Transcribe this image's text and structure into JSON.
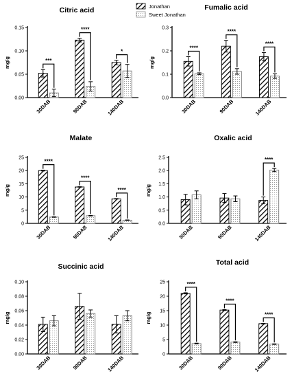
{
  "legend": {
    "items": [
      {
        "name": "Jonathan",
        "pattern": "hatch"
      },
      {
        "name": "Sweet Jonathan",
        "pattern": "dots"
      }
    ]
  },
  "chart_data": [
    {
      "type": "bar",
      "title": "Citric acid",
      "ylabel": "mg/g",
      "categories": [
        "30DAB",
        "90DAB",
        "140DAB"
      ],
      "ylim": [
        0,
        0.15
      ],
      "yticks": [
        "0.00",
        "0.05",
        "0.10",
        "0.15"
      ],
      "series": [
        {
          "name": "Jonathan",
          "values": [
            0.052,
            0.123,
            0.075
          ],
          "errors": [
            0.008,
            0.004,
            0.005
          ]
        },
        {
          "name": "Sweet Jonathan",
          "values": [
            0.01,
            0.024,
            0.057
          ],
          "errors": [
            0.008,
            0.01,
            0.014
          ]
        }
      ],
      "significance": [
        "***",
        "****",
        "*"
      ]
    },
    {
      "type": "bar",
      "title": "Fumalic acid",
      "ylabel": "mg/g",
      "categories": [
        "30DAB",
        "90DAB",
        "140DAB"
      ],
      "ylim": [
        0,
        0.3
      ],
      "yticks": [
        "0.0",
        "0.1",
        "0.2",
        "0.3"
      ],
      "series": [
        {
          "name": "Jonathan",
          "values": [
            0.155,
            0.22,
            0.175
          ],
          "errors": [
            0.02,
            0.025,
            0.018
          ]
        },
        {
          "name": "Sweet Jonathan",
          "values": [
            0.102,
            0.112,
            0.092
          ],
          "errors": [
            0.004,
            0.012,
            0.01
          ]
        }
      ],
      "significance": [
        "****",
        "****",
        "****"
      ]
    },
    {
      "type": "bar",
      "title": "Malate",
      "ylabel": "mg/g",
      "categories": [
        "30DAB",
        "90DAB",
        "140DAB"
      ],
      "ylim": [
        0,
        25
      ],
      "yticks": [
        "0",
        "5",
        "10",
        "15",
        "20",
        "25"
      ],
      "series": [
        {
          "name": "Jonathan",
          "values": [
            20.0,
            13.8,
            9.3
          ],
          "errors": [
            0.15,
            0.1,
            0.1
          ]
        },
        {
          "name": "Sweet Jonathan",
          "values": [
            2.4,
            2.9,
            1.2
          ],
          "errors": [
            0.1,
            0.1,
            0.1
          ]
        }
      ],
      "significance": [
        "****",
        "****",
        "****"
      ]
    },
    {
      "type": "bar",
      "title": "Oxalic acid",
      "ylabel": "mg/g",
      "categories": [
        "30DAB",
        "90DAB",
        "140DAB"
      ],
      "ylim": [
        0,
        2.5
      ],
      "yticks": [
        "0.0",
        "0.5",
        "1.0",
        "1.5",
        "2.0",
        "2.5"
      ],
      "series": [
        {
          "name": "Jonathan",
          "values": [
            0.9,
            0.96,
            0.87
          ],
          "errors": [
            0.2,
            0.17,
            0.13
          ]
        },
        {
          "name": "Sweet Jonathan",
          "values": [
            1.08,
            0.93,
            2.02
          ],
          "errors": [
            0.15,
            0.11,
            0.06
          ]
        }
      ],
      "significance": [
        "",
        "",
        "****"
      ]
    },
    {
      "type": "bar",
      "title": "Succinic acid",
      "ylabel": "mg/g",
      "categories": [
        "30DAB",
        "90DAB",
        "140DAB"
      ],
      "ylim": [
        0,
        0.1
      ],
      "yticks": [
        "0.00",
        "0.02",
        "0.04",
        "0.06",
        "0.08",
        "0.10"
      ],
      "series": [
        {
          "name": "Jonathan",
          "values": [
            0.041,
            0.066,
            0.041
          ],
          "errors": [
            0.01,
            0.018,
            0.012
          ]
        },
        {
          "name": "Sweet Jonathan",
          "values": [
            0.046,
            0.056,
            0.053
          ],
          "errors": [
            0.007,
            0.005,
            0.007
          ]
        }
      ],
      "significance": [
        "",
        "",
        ""
      ]
    },
    {
      "type": "bar",
      "title": "Total acid",
      "ylabel": "mg/g",
      "categories": [
        "30DAB",
        "90DAB",
        "140DAB"
      ],
      "ylim": [
        0,
        25
      ],
      "yticks": [
        "0",
        "5",
        "10",
        "15",
        "20",
        "25"
      ],
      "series": [
        {
          "name": "Jonathan",
          "values": [
            21.0,
            15.2,
            10.5
          ],
          "errors": [
            0.2,
            0.15,
            0.1
          ]
        },
        {
          "name": "Sweet Jonathan",
          "values": [
            3.6,
            4.1,
            3.4
          ],
          "errors": [
            0.15,
            0.12,
            0.1
          ]
        }
      ],
      "significance": [
        "****",
        "****",
        "****"
      ]
    }
  ]
}
